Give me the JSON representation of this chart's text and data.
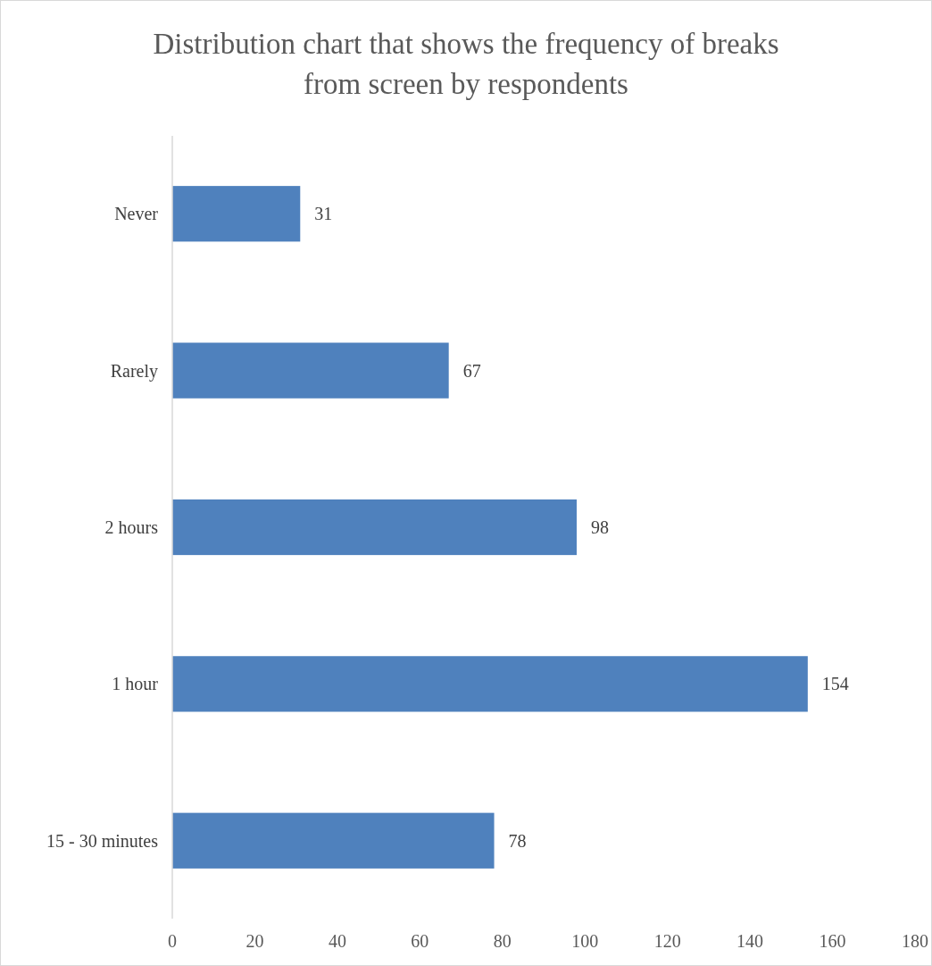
{
  "chart_data": {
    "type": "bar",
    "orientation": "horizontal",
    "title": "Distribution chart that shows the frequency of breaks from screen by respondents",
    "categories": [
      "Never",
      "Rarely",
      "2 hours",
      "1 hour",
      "15 - 30 minutes"
    ],
    "values": [
      31,
      67,
      98,
      154,
      78
    ],
    "color": "#4f81bd",
    "xlim": [
      0,
      180
    ],
    "xticks": [
      0,
      20,
      40,
      60,
      80,
      100,
      120,
      140,
      160,
      180
    ],
    "data_labels": true,
    "grid": false
  }
}
